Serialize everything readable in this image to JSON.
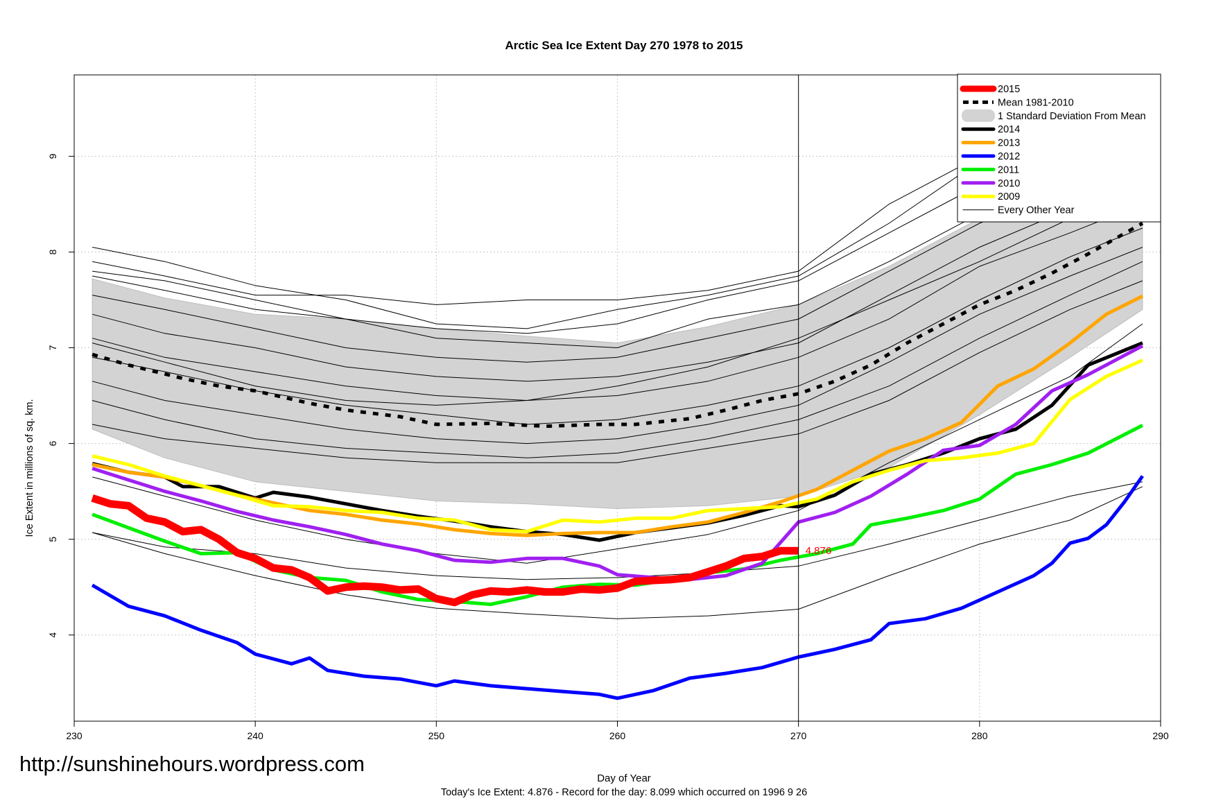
{
  "chart_data": {
    "type": "line",
    "title": "Arctic Sea Ice Extent Day 270 1978 to 2015",
    "xlabel": "Day of Year",
    "ylabel": "Ice Extent in millions of sq. km.",
    "xlim": [
      230,
      290
    ],
    "ylim": [
      3.1,
      9.85
    ],
    "xticks": [
      "230",
      "240",
      "250",
      "260",
      "270",
      "280",
      "290"
    ],
    "yticks": [
      "4",
      "5",
      "6",
      "7",
      "8",
      "9"
    ],
    "grid": true,
    "legend_position": "top-right",
    "current_day": 270,
    "current_label": "4.876",
    "footnote": "Today's Ice Extent: 4.876  - Record for the day: 8.099 which occurred on 1996 9 26",
    "watermark": "http://sunshinehours.wordpress.com",
    "colors": {
      "y2015": "#ff0000",
      "mean": "#000000",
      "band": "#d3d3d3",
      "y2014": "#000000",
      "y2013": "#ffa500",
      "y2012": "#0000ff",
      "y2011": "#00ee00",
      "y2010": "#a020f0",
      "y2009": "#ffff00",
      "other": "#000000"
    },
    "legend": [
      {
        "label": "2015",
        "key": "y2015",
        "style": "thick"
      },
      {
        "label": "Mean 1981-2010",
        "key": "mean",
        "style": "dashed"
      },
      {
        "label": "1 Standard Deviation From Mean",
        "key": "band",
        "style": "band"
      },
      {
        "label": "2014",
        "key": "y2014",
        "style": "normal"
      },
      {
        "label": "2013",
        "key": "y2013",
        "style": "normal"
      },
      {
        "label": "2012",
        "key": "y2012",
        "style": "normal"
      },
      {
        "label": "2011",
        "key": "y2011",
        "style": "normal"
      },
      {
        "label": "2010",
        "key": "y2010",
        "style": "normal"
      },
      {
        "label": "2009",
        "key": "y2009",
        "style": "normal"
      },
      {
        "label": "Every Other Year",
        "key": "other",
        "style": "thin"
      }
    ],
    "sd_band": {
      "x": [
        231,
        235,
        240,
        245,
        250,
        255,
        260,
        265,
        270,
        275,
        280,
        285,
        289
      ],
      "upper": [
        7.72,
        7.52,
        7.35,
        7.3,
        7.2,
        7.12,
        7.05,
        7.22,
        7.45,
        7.85,
        8.35,
        8.85,
        9.2
      ],
      "lower": [
        6.15,
        5.85,
        5.6,
        5.5,
        5.4,
        5.37,
        5.32,
        5.35,
        5.45,
        5.75,
        6.3,
        6.9,
        7.4
      ]
    },
    "mean_line": {
      "x": [
        231,
        233,
        236,
        238,
        240,
        243,
        245,
        248,
        250,
        253,
        256,
        259,
        261,
        264,
        266,
        268,
        270,
        272,
        274,
        276,
        278,
        280,
        282,
        284,
        286,
        289
      ],
      "y": [
        6.93,
        6.82,
        6.68,
        6.6,
        6.55,
        6.42,
        6.35,
        6.28,
        6.2,
        6.21,
        6.18,
        6.2,
        6.2,
        6.26,
        6.35,
        6.45,
        6.52,
        6.65,
        6.82,
        7.05,
        7.25,
        7.45,
        7.6,
        7.78,
        7.98,
        8.3
      ]
    },
    "series": [
      {
        "name": "2014",
        "key": "y2014",
        "x": [
          231,
          233,
          235,
          236,
          238,
          240,
          241,
          243,
          245,
          247,
          249,
          251,
          253,
          255,
          257,
          259,
          261,
          263,
          265,
          267,
          269,
          270,
          272,
          274,
          276,
          278,
          280,
          282,
          284,
          286,
          289
        ],
        "y": [
          5.79,
          5.7,
          5.65,
          5.55,
          5.55,
          5.43,
          5.49,
          5.44,
          5.37,
          5.3,
          5.24,
          5.19,
          5.13,
          5.08,
          5.05,
          4.99,
          5.07,
          5.12,
          5.17,
          5.25,
          5.35,
          5.34,
          5.46,
          5.68,
          5.78,
          5.9,
          6.05,
          6.15,
          6.4,
          6.82,
          7.05
        ]
      },
      {
        "name": "2013",
        "key": "y2013",
        "x": [
          231,
          233,
          235,
          237,
          239,
          241,
          243,
          245,
          247,
          249,
          251,
          253,
          255,
          257,
          259,
          261,
          263,
          265,
          267,
          269,
          271,
          273,
          275,
          277,
          279,
          281,
          283,
          285,
          287,
          289
        ],
        "y": [
          5.78,
          5.7,
          5.65,
          5.56,
          5.46,
          5.38,
          5.3,
          5.26,
          5.2,
          5.16,
          5.1,
          5.06,
          5.04,
          5.06,
          5.07,
          5.07,
          5.13,
          5.18,
          5.28,
          5.39,
          5.52,
          5.72,
          5.92,
          6.05,
          6.22,
          6.6,
          6.78,
          7.05,
          7.35,
          7.54
        ]
      },
      {
        "name": "2012",
        "key": "y2012",
        "x": [
          231,
          233,
          235,
          237,
          239,
          240,
          242,
          243,
          244,
          246,
          248,
          250,
          251,
          253,
          255,
          257,
          259,
          260,
          262,
          264,
          266,
          268,
          270,
          272,
          274,
          275,
          277,
          279,
          281,
          283,
          284,
          285,
          286,
          287,
          288,
          289
        ],
        "y": [
          4.52,
          4.3,
          4.2,
          4.05,
          3.92,
          3.8,
          3.7,
          3.76,
          3.63,
          3.57,
          3.54,
          3.47,
          3.52,
          3.47,
          3.44,
          3.41,
          3.38,
          3.34,
          3.42,
          3.55,
          3.6,
          3.66,
          3.77,
          3.85,
          3.95,
          4.12,
          4.17,
          4.28,
          4.45,
          4.62,
          4.75,
          4.96,
          5.01,
          5.15,
          5.39,
          5.66
        ]
      },
      {
        "name": "2011",
        "key": "y2011",
        "x": [
          231,
          233,
          235,
          237,
          239,
          241,
          243,
          245,
          247,
          249,
          251,
          253,
          255,
          257,
          259,
          261,
          263,
          265,
          267,
          269,
          271,
          273,
          274,
          276,
          278,
          280,
          282,
          284,
          286,
          289
        ],
        "y": [
          5.26,
          5.12,
          4.98,
          4.85,
          4.86,
          4.68,
          4.6,
          4.57,
          4.45,
          4.37,
          4.35,
          4.32,
          4.4,
          4.5,
          4.53,
          4.52,
          4.58,
          4.65,
          4.69,
          4.78,
          4.85,
          4.95,
          5.15,
          5.22,
          5.3,
          5.42,
          5.68,
          5.78,
          5.9,
          6.19
        ]
      },
      {
        "name": "2010",
        "key": "y2010",
        "x": [
          231,
          233,
          235,
          237,
          239,
          241,
          243,
          245,
          247,
          249,
          251,
          253,
          255,
          257,
          259,
          260,
          262,
          264,
          266,
          268,
          270,
          272,
          274,
          276,
          278,
          280,
          282,
          284,
          286,
          289
        ],
        "y": [
          5.74,
          5.62,
          5.5,
          5.4,
          5.29,
          5.2,
          5.13,
          5.05,
          4.95,
          4.88,
          4.78,
          4.76,
          4.8,
          4.8,
          4.72,
          4.63,
          4.6,
          4.58,
          4.62,
          4.75,
          5.18,
          5.28,
          5.45,
          5.68,
          5.93,
          5.98,
          6.2,
          6.55,
          6.72,
          7.02
        ]
      },
      {
        "name": "2009",
        "key": "y2009",
        "x": [
          231,
          233,
          235,
          237,
          239,
          241,
          243,
          245,
          247,
          249,
          251,
          253,
          255,
          257,
          259,
          261,
          263,
          265,
          267,
          269,
          271,
          273,
          275,
          277,
          279,
          281,
          283,
          285,
          287,
          289
        ],
        "y": [
          5.87,
          5.78,
          5.66,
          5.56,
          5.46,
          5.35,
          5.34,
          5.3,
          5.28,
          5.22,
          5.2,
          5.1,
          5.08,
          5.2,
          5.18,
          5.22,
          5.22,
          5.3,
          5.32,
          5.34,
          5.42,
          5.6,
          5.72,
          5.82,
          5.85,
          5.9,
          6.0,
          6.46,
          6.7,
          6.87
        ]
      },
      {
        "name": "2015",
        "key": "y2015",
        "x": [
          231,
          232,
          233,
          234,
          235,
          236,
          237,
          238,
          239,
          240,
          241,
          242,
          243,
          244,
          245,
          246,
          247,
          248,
          249,
          250,
          251,
          252,
          253,
          254,
          255,
          256,
          257,
          258,
          259,
          260,
          261,
          262,
          263,
          264,
          265,
          266,
          267,
          268,
          269,
          270
        ],
        "y": [
          5.43,
          5.37,
          5.35,
          5.22,
          5.18,
          5.08,
          5.1,
          5.0,
          4.86,
          4.8,
          4.7,
          4.68,
          4.6,
          4.46,
          4.5,
          4.51,
          4.5,
          4.47,
          4.48,
          4.38,
          4.34,
          4.42,
          4.46,
          4.45,
          4.47,
          4.45,
          4.45,
          4.48,
          4.47,
          4.49,
          4.56,
          4.57,
          4.58,
          4.6,
          4.66,
          4.72,
          4.8,
          4.82,
          4.88,
          4.88
        ]
      }
    ],
    "other_years": [
      {
        "x": [
          231,
          235,
          240,
          245,
          250,
          255,
          260,
          265,
          270,
          275,
          280,
          285,
          289
        ],
        "y": [
          8.05,
          7.9,
          7.65,
          7.5,
          7.25,
          7.2,
          7.4,
          7.55,
          7.75,
          8.3,
          8.95,
          9.3,
          9.6
        ]
      },
      {
        "x": [
          231,
          235,
          240,
          245,
          250,
          255,
          260,
          265,
          270,
          275,
          280,
          285,
          289
        ],
        "y": [
          7.9,
          7.75,
          7.55,
          7.55,
          7.45,
          7.5,
          7.5,
          7.6,
          7.8,
          8.5,
          9.0,
          9.3,
          9.55
        ]
      },
      {
        "x": [
          231,
          235,
          240,
          245,
          250,
          255,
          260,
          265,
          270,
          275,
          280,
          285,
          289
        ],
        "y": [
          7.8,
          7.7,
          7.5,
          7.3,
          7.2,
          7.15,
          7.25,
          7.5,
          7.7,
          8.2,
          8.7,
          9.1,
          9.4
        ]
      },
      {
        "x": [
          231,
          235,
          240,
          245,
          250,
          255,
          260,
          265,
          270,
          275,
          280,
          285,
          289
        ],
        "y": [
          7.75,
          7.6,
          7.4,
          7.3,
          7.1,
          7.05,
          7.0,
          7.3,
          7.45,
          7.9,
          8.4,
          8.9,
          9.25
        ]
      },
      {
        "x": [
          231,
          235,
          240,
          245,
          250,
          255,
          260,
          265,
          270,
          275,
          280,
          285,
          289
        ],
        "y": [
          7.55,
          7.4,
          7.2,
          7.0,
          6.9,
          6.85,
          6.9,
          7.1,
          7.3,
          7.8,
          8.3,
          8.7,
          9.05
        ]
      },
      {
        "x": [
          231,
          235,
          240,
          245,
          250,
          255,
          260,
          265,
          270,
          275,
          280,
          285,
          289
        ],
        "y": [
          7.35,
          7.15,
          7.0,
          6.8,
          6.7,
          6.65,
          6.7,
          6.85,
          7.05,
          7.55,
          8.05,
          8.45,
          8.8
        ]
      },
      {
        "x": [
          231,
          235,
          240,
          245,
          250,
          255,
          260,
          265,
          270,
          275,
          280,
          285,
          289
        ],
        "y": [
          7.1,
          6.9,
          6.75,
          6.6,
          6.5,
          6.45,
          6.5,
          6.65,
          6.9,
          7.3,
          7.85,
          8.2,
          8.5
        ]
      },
      {
        "x": [
          231,
          235,
          240,
          245,
          250,
          255,
          260,
          265,
          270,
          275,
          280,
          285,
          289
        ],
        "y": [
          6.9,
          6.75,
          6.55,
          6.4,
          6.3,
          6.2,
          6.25,
          6.4,
          6.6,
          7.0,
          7.5,
          7.95,
          8.25
        ]
      },
      {
        "x": [
          231,
          235,
          240,
          245,
          250,
          255,
          260,
          265,
          270,
          275,
          280,
          285,
          289
        ],
        "y": [
          6.65,
          6.45,
          6.3,
          6.15,
          6.05,
          6.0,
          6.05,
          6.2,
          6.4,
          6.85,
          7.35,
          7.75,
          8.05
        ]
      },
      {
        "x": [
          231,
          235,
          240,
          245,
          250,
          255,
          260,
          265,
          270,
          275,
          280,
          285,
          289
        ],
        "y": [
          6.45,
          6.25,
          6.05,
          5.95,
          5.9,
          5.85,
          5.9,
          6.05,
          6.25,
          6.6,
          7.1,
          7.55,
          7.9
        ]
      },
      {
        "x": [
          231,
          235,
          240,
          245,
          250,
          255,
          260,
          265,
          270,
          275,
          280,
          285,
          289
        ],
        "y": [
          6.2,
          6.05,
          5.95,
          5.85,
          5.8,
          5.8,
          5.8,
          5.95,
          6.1,
          6.45,
          6.95,
          7.4,
          7.7
        ]
      },
      {
        "x": [
          231,
          235,
          240,
          245,
          250,
          255,
          260,
          265,
          270,
          275,
          280,
          285,
          289
        ],
        "y": [
          7.05,
          6.85,
          6.6,
          6.45,
          6.4,
          6.45,
          6.6,
          6.8,
          7.1,
          7.5,
          7.9,
          8.35,
          8.8
        ]
      },
      {
        "x": [
          231,
          235,
          240,
          245,
          250,
          255,
          260,
          265,
          270,
          275,
          280,
          285,
          289
        ],
        "y": [
          5.07,
          4.92,
          4.85,
          4.7,
          4.62,
          4.58,
          4.6,
          4.65,
          4.72,
          4.95,
          5.2,
          5.45,
          5.6
        ]
      },
      {
        "x": [
          231,
          235,
          240,
          245,
          250,
          255,
          260,
          265,
          270,
          275,
          280,
          285,
          289
        ],
        "y": [
          5.07,
          4.85,
          4.62,
          4.42,
          4.28,
          4.22,
          4.17,
          4.2,
          4.27,
          4.62,
          4.95,
          5.2,
          5.55
        ]
      },
      {
        "x": [
          231,
          235,
          240,
          245,
          250,
          255,
          260,
          265,
          270,
          275,
          280,
          285,
          289
        ],
        "y": [
          5.65,
          5.45,
          5.2,
          5.0,
          4.85,
          4.75,
          4.9,
          5.05,
          5.3,
          5.8,
          6.25,
          6.7,
          7.25
        ]
      }
    ]
  }
}
